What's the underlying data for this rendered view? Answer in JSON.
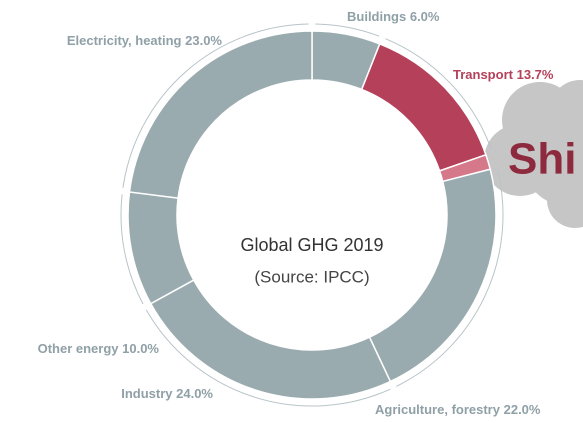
{
  "chart_data": {
    "type": "donut",
    "title": "Global GHG 2019",
    "subtitle": "(Source: IPCC)",
    "categories": [
      "Buildings",
      "Transport",
      "Shi",
      "Agriculture, forestry",
      "Industry",
      "Other energy",
      "Electricity, heating"
    ],
    "values": [
      6.0,
      13.7,
      1.3,
      22.0,
      24.0,
      10.0,
      23.0
    ],
    "value_labels": [
      "6.0%",
      "13.7%",
      null,
      "22.0%",
      "24.0%",
      "10.0%",
      "23.0%"
    ],
    "colors": [
      "#9aabb0",
      "#b5405a",
      "#d4788a",
      "#9aabb0",
      "#9aabb0",
      "#9aabb0",
      "#9aabb0"
    ]
  }
}
